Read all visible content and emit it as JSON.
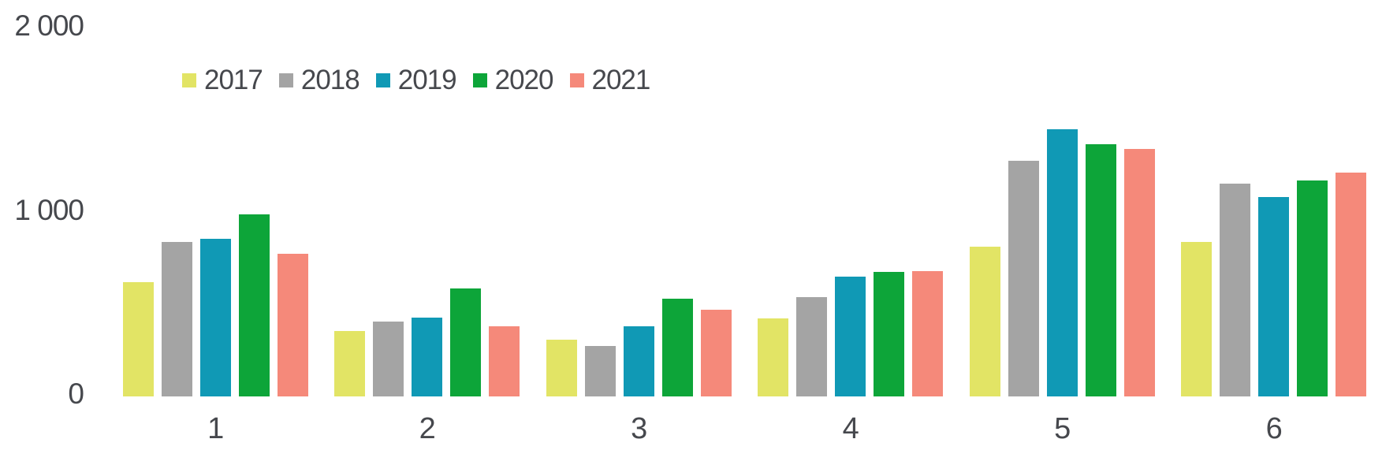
{
  "chart_data": {
    "type": "bar",
    "title": "",
    "xlabel": "",
    "ylabel": "",
    "categories": [
      "1",
      "2",
      "3",
      "4",
      "5",
      "6"
    ],
    "series": [
      {
        "name": "2017",
        "color": "#e2e465",
        "values": [
          620,
          355,
          310,
          425,
          815,
          840
        ]
      },
      {
        "name": "2018",
        "color": "#a4a4a4",
        "values": [
          840,
          405,
          275,
          540,
          1280,
          1155
        ]
      },
      {
        "name": "2019",
        "color": "#1099b5",
        "values": [
          855,
          430,
          380,
          650,
          1450,
          1085
        ]
      },
      {
        "name": "2020",
        "color": "#0da539",
        "values": [
          990,
          585,
          530,
          675,
          1370,
          1175
        ]
      },
      {
        "name": "2021",
        "color": "#f5897a",
        "values": [
          775,
          380,
          470,
          680,
          1345,
          1215
        ]
      }
    ],
    "ylim": [
      0,
      2000
    ],
    "yticks": [
      {
        "value": 0,
        "label": "0"
      },
      {
        "value": 1000,
        "label": "1 000"
      },
      {
        "value": 2000,
        "label": "2 000"
      }
    ],
    "grid": false,
    "legend_position": "top-left",
    "text_color": "#46484d",
    "background_color": "#ffffff"
  }
}
